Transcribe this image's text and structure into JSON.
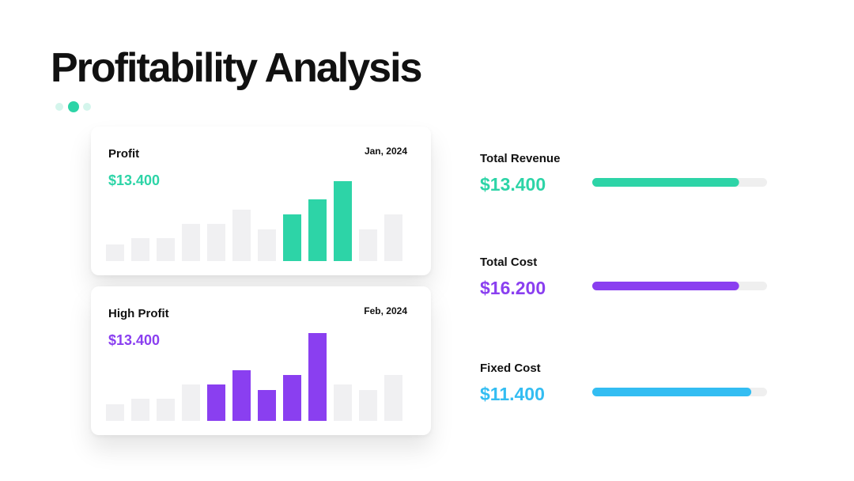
{
  "title": "Profitability Analysis",
  "chart_data": [
    {
      "type": "bar",
      "title": "Profit",
      "date": "Jan, 2024",
      "amount": "$13.400",
      "amount_color": "#2dd4a7",
      "categories": [
        null,
        null,
        null,
        null,
        null,
        null,
        null,
        null,
        null,
        null,
        null,
        null
      ],
      "values": [
        21,
        29,
        29,
        47,
        47,
        65,
        40,
        59,
        78,
        101,
        40,
        59
      ],
      "colors": [
        "#f0f0f2",
        "#f0f0f2",
        "#f0f0f2",
        "#f0f0f2",
        "#f0f0f2",
        "#f0f0f2",
        "#f0f0f2",
        "#2dd4a7",
        "#2dd4a7",
        "#2dd4a7",
        "#f0f0f2",
        "#f0f0f2"
      ],
      "ylim": [
        0,
        120
      ]
    },
    {
      "type": "bar",
      "title": "High Profit",
      "date": "Feb, 2024",
      "amount": "$13.400",
      "amount_color": "#8a3ff0",
      "categories": [
        null,
        null,
        null,
        null,
        null,
        null,
        null,
        null,
        null,
        null,
        null,
        null
      ],
      "values": [
        21,
        28,
        28,
        46,
        46,
        64,
        39,
        58,
        111,
        46,
        39,
        58
      ],
      "colors": [
        "#f0f0f2",
        "#f0f0f2",
        "#f0f0f2",
        "#f0f0f2",
        "#8a3ff0",
        "#8a3ff0",
        "#8a3ff0",
        "#8a3ff0",
        "#8a3ff0",
        "#f0f0f2",
        "#f0f0f2",
        "#f0f0f2"
      ],
      "ylim": [
        0,
        120
      ]
    }
  ],
  "metrics": [
    {
      "label": "Total Revenue",
      "value": "$13.400",
      "progress": 84,
      "color": "#2dd4a7"
    },
    {
      "label": "Total Cost",
      "value": "$16.200",
      "progress": 84,
      "color": "#8a3ff0"
    },
    {
      "label": "Fixed Cost",
      "value": "$11.400",
      "progress": 91,
      "color": "#33bdf2"
    }
  ],
  "progress_lim": [
    0,
    100
  ]
}
